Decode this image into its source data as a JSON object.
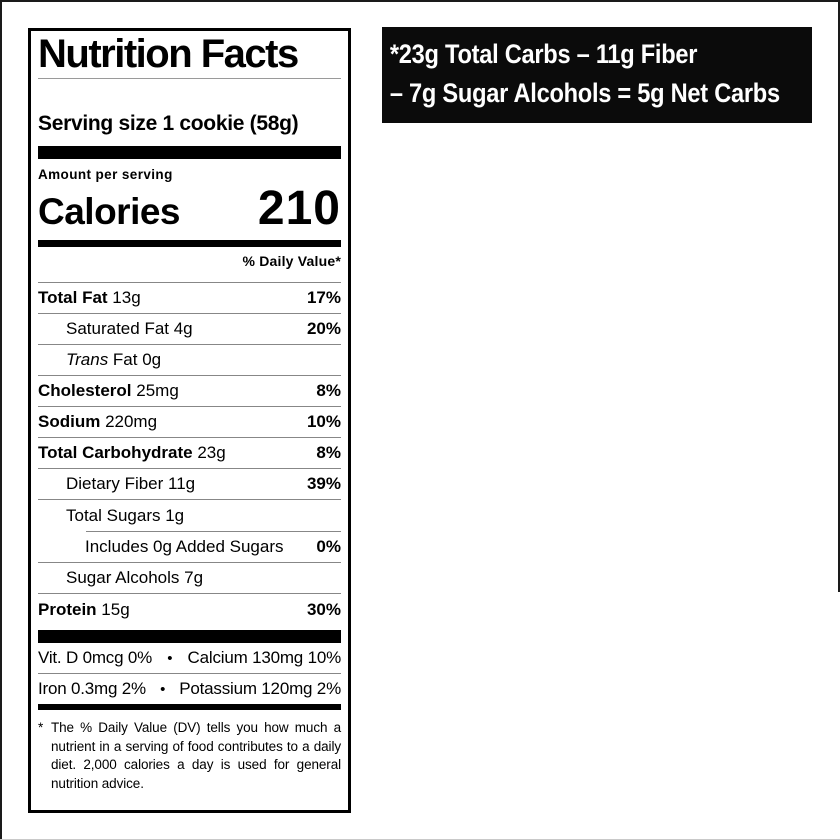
{
  "colors": {
    "ink": "#000000",
    "paper": "#ffffff",
    "hairline": "#878787",
    "title_rule": "#9a9a9a",
    "callout_bg": "#0b0b0b",
    "callout_fg": "#ffffff"
  },
  "callout": {
    "line1": "*23g Total Carbs – 11g Fiber",
    "line2": "– 7g Sugar Alcohols = 5g Net Carbs"
  },
  "label": {
    "title": "Nutrition Facts",
    "serving_line": "Serving size 1 cookie (58g)",
    "amount_per_serving": "Amount per serving",
    "calories_label": "Calories",
    "calories_value": "210",
    "dv_header": "% Daily Value*",
    "rows": [
      {
        "bold": "Total Fat",
        "rest": " 13g",
        "pct": "17%"
      },
      {
        "bold": "",
        "rest": "Saturated Fat 4g",
        "pct": "20%"
      },
      {
        "italic": "Trans",
        "rest": " Fat 0g",
        "pct": ""
      },
      {
        "bold": "Cholesterol",
        "rest": " 25mg",
        "pct": "8%"
      },
      {
        "bold": "Sodium",
        "rest": " 220mg",
        "pct": "10%"
      },
      {
        "bold": "Total Carbohydrate",
        "rest": " 23g",
        "pct": "8%"
      },
      {
        "bold": "",
        "rest": "Dietary Fiber 11g",
        "pct": "39%"
      },
      {
        "bold": "",
        "rest": "Total Sugars 1g",
        "pct": ""
      },
      {
        "bold": "",
        "rest": "Includes 0g Added Sugars",
        "pct": "0%"
      },
      {
        "bold": "",
        "rest": "Sugar Alcohols 7g",
        "pct": ""
      },
      {
        "bold": "Protein",
        "rest": " 15g",
        "pct": "30%"
      }
    ],
    "micros": [
      {
        "left": "Vit. D 0mcg 0%",
        "bullet": "•",
        "right": "Calcium 130mg 10%"
      },
      {
        "left": "Iron 0.3mg 2%",
        "bullet": "•",
        "right": "Potassium 120mg 2%"
      }
    ],
    "footnote_marker": "*",
    "footnote": "The % Daily Value (DV) tells you how much a nutrient in a serving of food contributes to a daily diet. 2,000 calories a day is used for general nutrition advice."
  }
}
